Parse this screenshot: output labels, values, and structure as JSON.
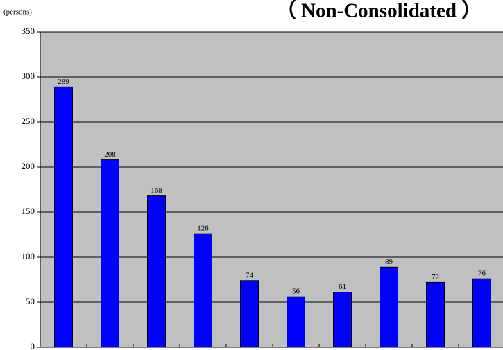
{
  "chart_data": {
    "type": "bar",
    "title": "（ Non-Consolidated ）",
    "y_label": "(persons)",
    "categories": [
      null,
      null,
      null,
      null,
      null,
      null,
      null,
      null,
      null,
      null
    ],
    "values": [
      289,
      208,
      168,
      126,
      74,
      56,
      61,
      89,
      72,
      76
    ],
    "color": "#0000ff",
    "ylim": [
      0,
      350
    ],
    "yticks": [
      0,
      50,
      100,
      150,
      200,
      250,
      300,
      350
    ],
    "grid": true,
    "data_labels": true
  }
}
